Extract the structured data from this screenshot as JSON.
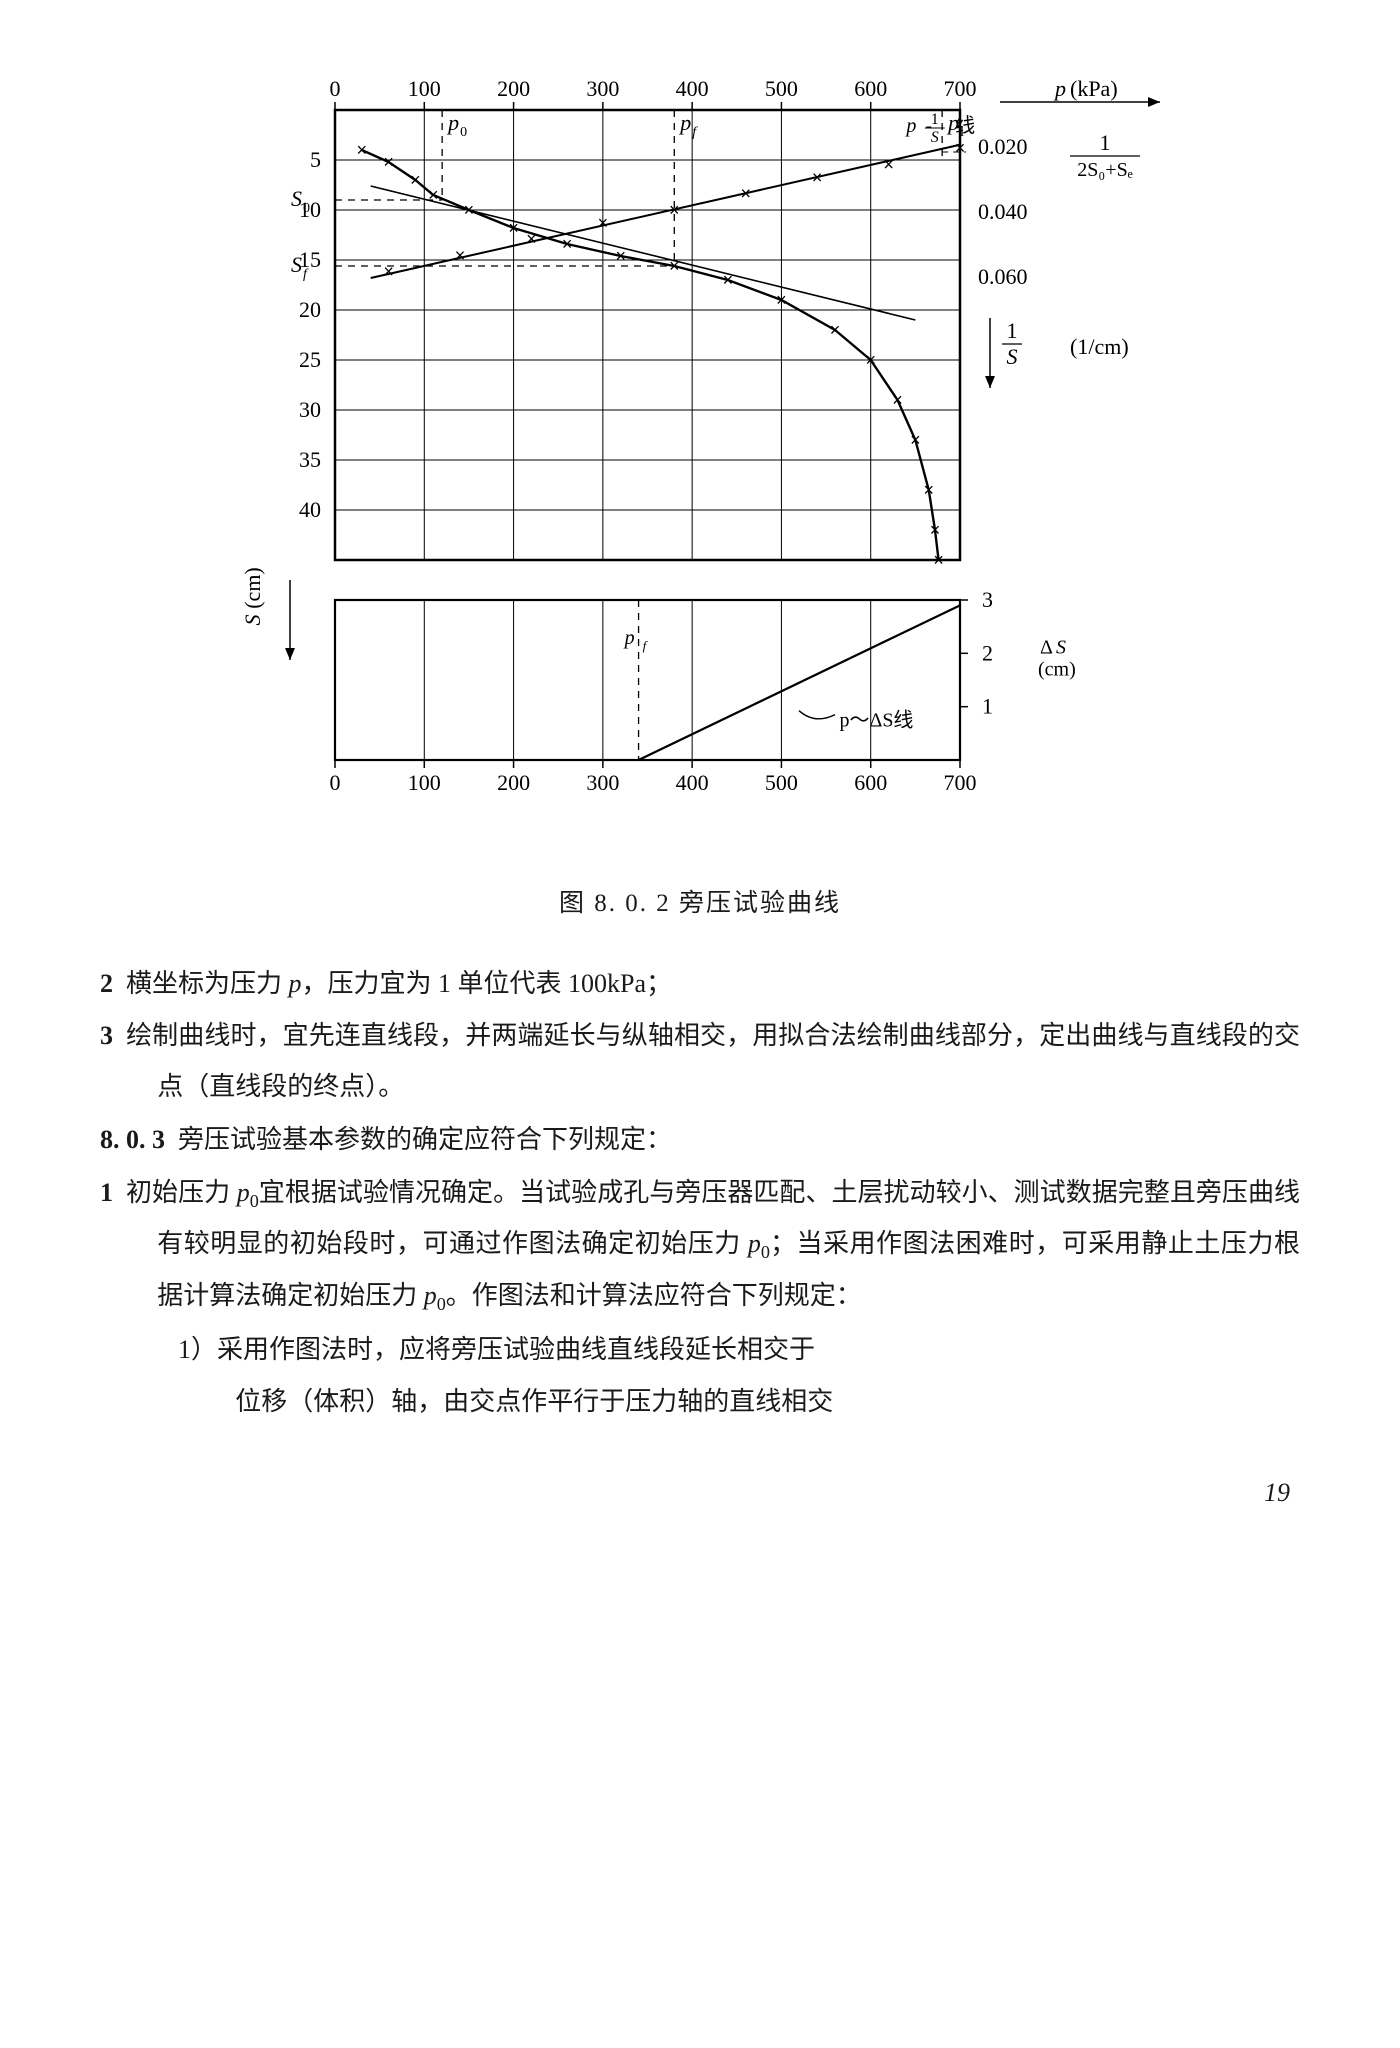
{
  "figure": {
    "caption": "图 8. 0. 2   旁压试验曲线",
    "x_ticks": [
      0,
      100,
      200,
      300,
      400,
      500,
      600,
      700
    ],
    "left_s_ticks": [
      5,
      10,
      15,
      20,
      25,
      30,
      35,
      40
    ],
    "right_recip_ticks": [
      0.02,
      0.04,
      0.06
    ],
    "ds_ticks": [
      1,
      2,
      3
    ],
    "p_axis_label": "p(kPa)",
    "s_axis_label": "S(cm)",
    "recip_axis_label": "1/S  (1/cm)",
    "ds_axis_label": "ΔS\n(cm)",
    "formula_numer": "1",
    "formula_denom": "2S₀+Sₑ",
    "label_p0": "p₀",
    "label_pf": "p𝒇",
    "label_pl": "pₗ",
    "label_S0": "S₀",
    "label_Sf": "S𝒇",
    "label_recip_line": "p- 1/S 线",
    "label_ds_line": "p～ΔS线",
    "marker": "×",
    "ps_curve": [
      [
        30,
        4
      ],
      [
        60,
        5.2
      ],
      [
        90,
        7
      ],
      [
        110,
        8.5
      ],
      [
        150,
        10
      ],
      [
        200,
        11.8
      ],
      [
        260,
        13.4
      ],
      [
        320,
        14.6
      ],
      [
        380,
        15.6
      ],
      [
        440,
        17
      ],
      [
        500,
        19
      ],
      [
        560,
        22
      ],
      [
        600,
        25
      ],
      [
        630,
        29
      ],
      [
        650,
        33
      ],
      [
        665,
        38
      ],
      [
        672,
        42
      ],
      [
        676,
        45
      ]
    ],
    "recip_line": [
      [
        40,
        0.06
      ],
      [
        700,
        0.019
      ]
    ],
    "recip_marks": [
      [
        60,
        0.058
      ],
      [
        140,
        0.053
      ],
      [
        220,
        0.048
      ],
      [
        300,
        0.043
      ],
      [
        380,
        0.039
      ],
      [
        460,
        0.034
      ],
      [
        540,
        0.029
      ],
      [
        620,
        0.025
      ],
      [
        700,
        0.02
      ]
    ],
    "ds_line": [
      [
        340,
        0
      ],
      [
        700,
        2.9
      ]
    ],
    "tangent": [
      [
        40,
        7.6
      ],
      [
        650,
        21
      ]
    ],
    "p0_dashed_x": 120,
    "pf_dashed_x": 380,
    "pl_dashed_x": 680,
    "sf_dashed_y": 15.6,
    "s0_dashed_y": 9,
    "pf2_dashed_x": 340,
    "colors": {
      "stroke": "#000000",
      "bg": "#ffffff"
    }
  },
  "body": {
    "i2": "横坐标为压力 ",
    "i2b": "，压力宜为 1 单位代表 100kPa；",
    "i3": "绘制曲线时，宜先连直线段，并两端延长与纵轴相交，用拟合法绘制曲线部分，定出曲线与直线段的交点（直线段的终点）。",
    "sec803": "旁压试验基本参数的确定应符合下列规定：",
    "i803_1a": "初始压力 ",
    "i803_1b": "宜根据试验情况确定。当试验成孔与旁压器匹配、土层扰动较小、测试数据完整且旁压曲线有较明显的初始段时，可通过作图法确定初始压力 ",
    "i803_1c": "；当采用作图法困难时，可采用静止土压力根据计算法确定初始压力 ",
    "i803_1d": "。作图法和计算法应符合下列规定：",
    "sub1a": "1）采用作图法时，应将旁压试验曲线直线段延长相交于",
    "sub1b": "位移（体积）轴，由交点作平行于压力轴的直线相交",
    "p_sym": "p",
    "p0_sym": "p",
    "p0_sub": "0"
  },
  "page_number": "19"
}
